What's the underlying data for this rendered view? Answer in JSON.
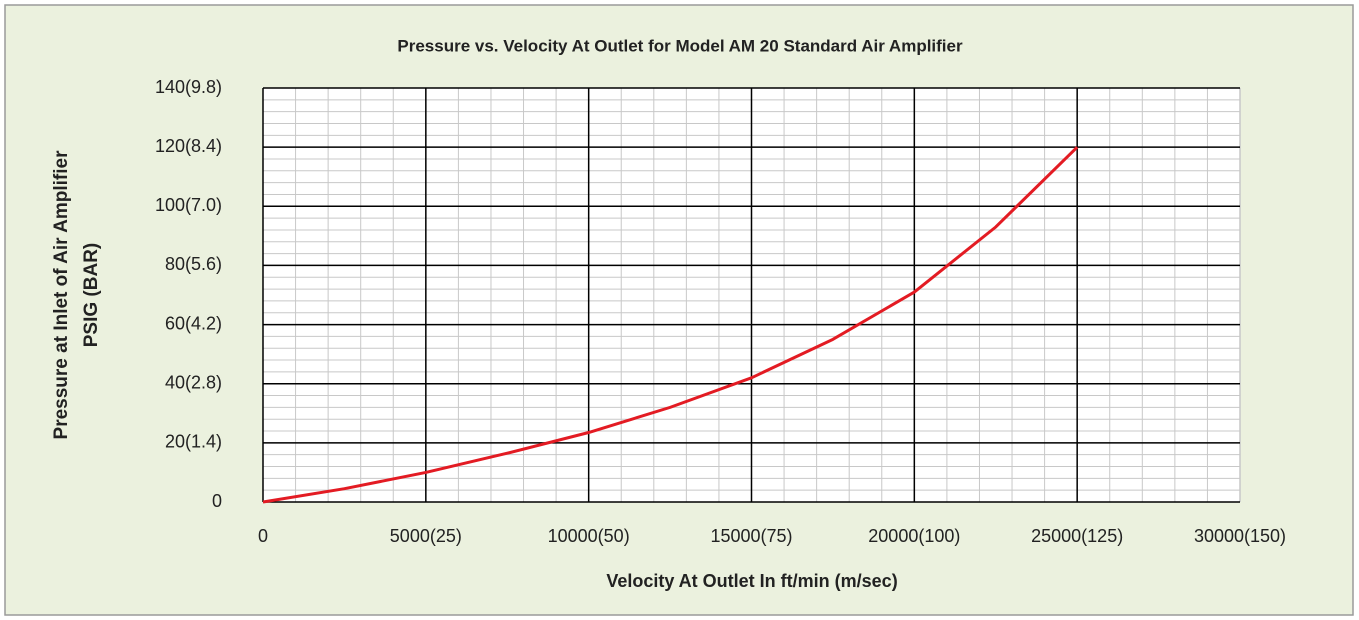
{
  "chart_data": {
    "type": "line",
    "title": "Pressure vs. Velocity At Outlet for Model AM 20 Standard Air Amplifier",
    "xlabel": "Velocity At Outlet In ft/min (m/sec)",
    "ylabel": [
      "Pressure at Inlet of Air Amplifier",
      "PSIG (BAR)"
    ],
    "x": [
      0,
      2500,
      5000,
      7500,
      10000,
      12500,
      15000,
      17500,
      20000,
      22500,
      25000
    ],
    "series": [
      {
        "color": "#e31b23",
        "values": [
          0,
          4.5,
          10,
          16.5,
          23.5,
          32,
          42,
          55,
          71,
          93,
          120
        ]
      }
    ],
    "xlim": [
      0,
      30000
    ],
    "xticks": [
      0,
      {
        "value": 5000,
        "label": "5000(25)"
      },
      {
        "value": 10000,
        "label": "10000(50)"
      },
      {
        "value": 15000,
        "label": "15000(75)"
      },
      {
        "value": 20000,
        "label": "20000(100)"
      },
      {
        "value": 25000,
        "label": "25000(125)"
      },
      {
        "value": 30000,
        "label": "30000(150)"
      }
    ],
    "ylim": [
      0,
      140
    ],
    "yticks": [
      0,
      {
        "value": 20,
        "label": "20(1.4)"
      },
      {
        "value": 40,
        "label": "40(2.8)"
      },
      {
        "value": 60,
        "label": "60(4.2)"
      },
      {
        "value": 80,
        "label": "80(5.6)"
      },
      {
        "value": 100,
        "label": "100(7.0)"
      },
      {
        "value": 120,
        "label": "120(8.4)"
      },
      {
        "value": 140,
        "label": "140(9.8)"
      }
    ],
    "grid": true,
    "minor_grid": {
      "x": 1000,
      "y": 4
    }
  }
}
